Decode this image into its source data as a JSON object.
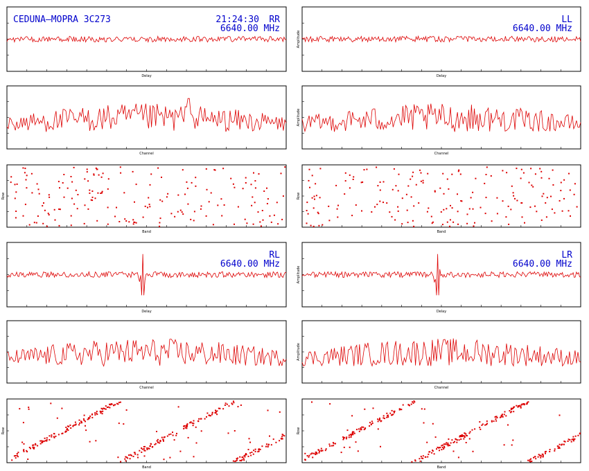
{
  "colors": {
    "trace": "#dd0000",
    "frame": "#000000",
    "header_text": "#0000cc"
  },
  "headers": {
    "source": "CEDUNA–MOPRA 3C273",
    "time": "21:24:30",
    "freq": "6640.00 MHz",
    "pol_rr": "RR",
    "pol_ll": "LL",
    "pol_rl": "RL",
    "pol_lr": "LR"
  },
  "labels": {
    "delay": "Delay",
    "channel": "Channel",
    "amplitude": "Amplitude",
    "row": "Row",
    "band": "Band"
  },
  "chart_data": [
    {
      "id": "rr-delay",
      "type": "line",
      "polarisation": "RR",
      "xlabel": "Delay",
      "ylabel": "",
      "noise": 0.06,
      "spike": null
    },
    {
      "id": "ll-delay",
      "type": "line",
      "polarisation": "LL",
      "xlabel": "Delay",
      "ylabel": "Amplitude",
      "noise": 0.06,
      "spike": null
    },
    {
      "id": "rr-channel",
      "type": "line",
      "polarisation": "RR",
      "xlabel": "Channel",
      "ylabel": "",
      "peak_channel": 0.65
    },
    {
      "id": "ll-channel",
      "type": "line",
      "polarisation": "LL",
      "xlabel": "Channel",
      "ylabel": "Amplitude",
      "peak_channel": null
    },
    {
      "id": "rr-phase",
      "type": "scatter",
      "polarisation": "RR",
      "xlabel": "Band",
      "ylabel": "Row",
      "pattern": "random"
    },
    {
      "id": "ll-phase",
      "type": "scatter",
      "polarisation": "LL",
      "xlabel": "Band",
      "ylabel": "Row",
      "pattern": "random"
    },
    {
      "id": "rl-delay",
      "type": "line",
      "polarisation": "RL",
      "xlabel": "Delay",
      "ylabel": "",
      "noise": 0.06,
      "spike": 0.485
    },
    {
      "id": "lr-delay",
      "type": "line",
      "polarisation": "LR",
      "xlabel": "Delay",
      "ylabel": "Amplitude",
      "noise": 0.06,
      "spike": 0.485
    },
    {
      "id": "rl-channel",
      "type": "line",
      "polarisation": "RL",
      "xlabel": "Channel",
      "ylabel": "",
      "peak_channel": null
    },
    {
      "id": "lr-channel",
      "type": "line",
      "polarisation": "LR",
      "xlabel": "Channel",
      "ylabel": "Amplitude",
      "peak_channel": null
    },
    {
      "id": "rl-phase",
      "type": "scatter",
      "polarisation": "RL",
      "xlabel": "Band",
      "ylabel": "Row",
      "pattern": "wrapped"
    },
    {
      "id": "lr-phase",
      "type": "scatter",
      "polarisation": "LR",
      "xlabel": "Band",
      "ylabel": "Row",
      "pattern": "wrapped"
    }
  ]
}
